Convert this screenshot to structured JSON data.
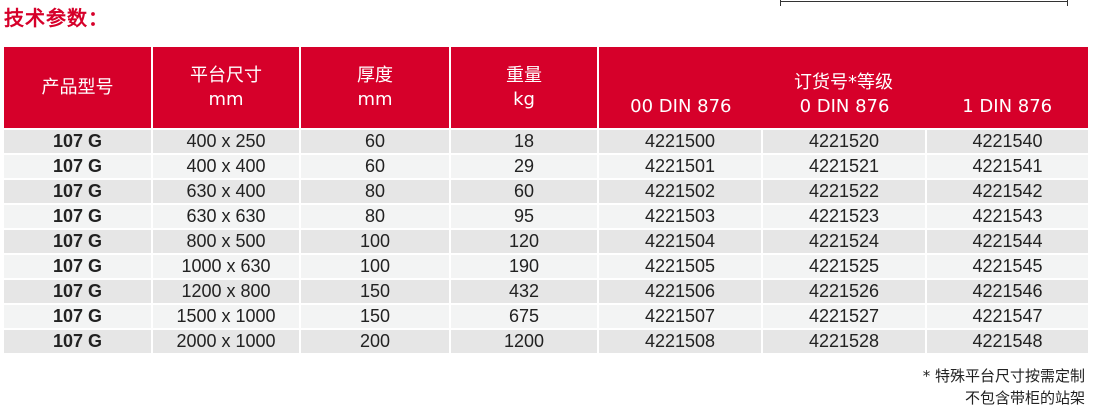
{
  "title": "技术参数：",
  "headers": {
    "model": "产品型号",
    "size": "平台尺寸",
    "size_unit": "mm",
    "thickness": "厚度",
    "thickness_unit": "mm",
    "weight": "重量",
    "weight_unit": "kg",
    "order": "订货号*等级",
    "grade00": "00 DIN 876",
    "grade0": "0 DIN 876",
    "grade1": "1 DIN 876"
  },
  "rows": [
    [
      "107 G",
      "400 x 250",
      "60",
      "18",
      "4221500",
      "4221520",
      "4221540"
    ],
    [
      "107 G",
      "400 x 400",
      "60",
      "29",
      "4221501",
      "4221521",
      "4221541"
    ],
    [
      "107 G",
      "630 x 400",
      "80",
      "60",
      "4221502",
      "4221522",
      "4221542"
    ],
    [
      "107 G",
      "630 x 630",
      "80",
      "95",
      "4221503",
      "4221523",
      "4221543"
    ],
    [
      "107 G",
      "800 x 500",
      "100",
      "120",
      "4221504",
      "4221524",
      "4221544"
    ],
    [
      "107 G",
      "1000 x 630",
      "100",
      "190",
      "4221505",
      "4221525",
      "4221545"
    ],
    [
      "107 G",
      "1200 x 800",
      "150",
      "432",
      "4221506",
      "4221526",
      "4221546"
    ],
    [
      "107 G",
      "1500 x 1000",
      "150",
      "675",
      "4221507",
      "4221527",
      "4221547"
    ],
    [
      "107 G",
      "2000 x 1000",
      "200",
      "1200",
      "4221508",
      "4221528",
      "4221548"
    ]
  ],
  "notes": [
    "* 特殊平台尺寸按需定制",
    "不包含带柜的站架"
  ],
  "colors": {
    "header": "#d6002a"
  }
}
